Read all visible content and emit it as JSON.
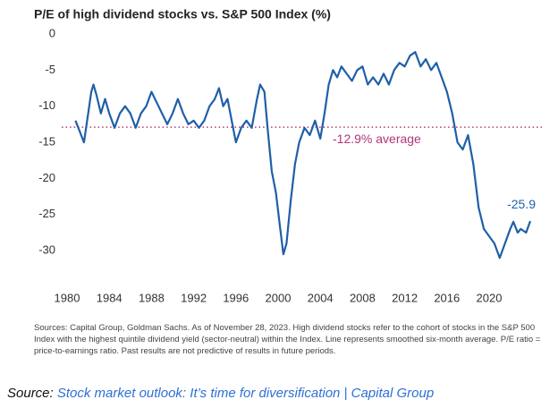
{
  "chart_data": {
    "type": "line",
    "title": "P/E of high dividend stocks vs. S&P 500 Index (%)",
    "x": [
      1980.8,
      1981.2,
      1981.6,
      1982,
      1982.3,
      1982.5,
      1982.8,
      1983.2,
      1983.6,
      1984,
      1984.5,
      1985,
      1985.5,
      1986,
      1986.5,
      1987,
      1987.5,
      1988,
      1988.5,
      1989,
      1989.5,
      1990,
      1990.5,
      1991,
      1991.5,
      1992,
      1992.5,
      1993,
      1993.5,
      1994,
      1994.4,
      1994.8,
      1995.2,
      1995.6,
      1996,
      1996.5,
      1997,
      1997.5,
      1998,
      1998.3,
      1998.7,
      1999,
      1999.4,
      1999.8,
      2000.2,
      2000.5,
      2000.8,
      2001.2,
      2001.6,
      2002,
      2002.5,
      2003,
      2003.5,
      2004,
      2004.4,
      2004.8,
      2005.2,
      2005.6,
      2006,
      2006.5,
      2007,
      2007.5,
      2008,
      2008.5,
      2009,
      2009.5,
      2010,
      2010.5,
      2011,
      2011.5,
      2012,
      2012.5,
      2013,
      2013.5,
      2014,
      2014.5,
      2015,
      2015.5,
      2016,
      2016.5,
      2017,
      2017.5,
      2018,
      2018.5,
      2019,
      2019.5,
      2020,
      2020.5,
      2021,
      2021.5,
      2022,
      2022.3,
      2022.7,
      2023,
      2023.5,
      2023.9
    ],
    "series": [
      {
        "name": "P/E of high dividend stocks vs. S&P 500 Index",
        "color": "#1f5fa8",
        "values": [
          -12,
          -13.5,
          -15,
          -11,
          -8,
          -7,
          -8.5,
          -11,
          -9,
          -11,
          -13,
          -11,
          -10,
          -11,
          -13,
          -11,
          -10,
          -8,
          -9.5,
          -11,
          -12.5,
          -11,
          -9,
          -11,
          -12.5,
          -12,
          -13,
          -12,
          -10,
          -9,
          -7.5,
          -10,
          -9,
          -12,
          -15,
          -13,
          -12,
          -13,
          -9,
          -7,
          -8,
          -13,
          -19,
          -22,
          -27,
          -30.5,
          -29,
          -23,
          -18,
          -15,
          -13,
          -14,
          -12,
          -14.5,
          -11,
          -7,
          -5,
          -6,
          -4.5,
          -5.5,
          -6.5,
          -5,
          -4.5,
          -7,
          -6,
          -7,
          -5.5,
          -7,
          -5,
          -4,
          -4.5,
          -3,
          -2.5,
          -4.5,
          -3.5,
          -5,
          -4,
          -6,
          -8,
          -11,
          -15,
          -16,
          -14,
          -18,
          -24,
          -27,
          -28,
          -29,
          -31,
          -29,
          -27,
          -26,
          -27.5,
          -27,
          -27.5,
          -25.9
        ]
      }
    ],
    "average": -12.9,
    "average_label": "-12.9% average",
    "average_color": "#b0357a",
    "xlim": [
      1979.5,
      2025
    ],
    "xticks": [
      1980,
      1984,
      1988,
      1992,
      1996,
      2000,
      2004,
      2008,
      2012,
      2016,
      2020
    ],
    "ylim": [
      -32,
      1
    ],
    "yticks": [
      0,
      -5,
      -10,
      -15,
      -20,
      -25,
      -30
    ],
    "grid": false,
    "notes": "Sources: Capital Group, Goldman Sachs. As of November 28, 2023. High dividend stocks refer to the cohort of stocks in the S&P 500 Index with the highest quintile dividend yield (sector-neutral) within the Index. Line represents smoothed six-month average. P/E ratio = price-to-earnings ratio. Past results are not predictive of results in future periods."
  },
  "source": {
    "prefix": "Source:",
    "link": "Stock market outlook: It’s time for diversification | Capital Group"
  }
}
